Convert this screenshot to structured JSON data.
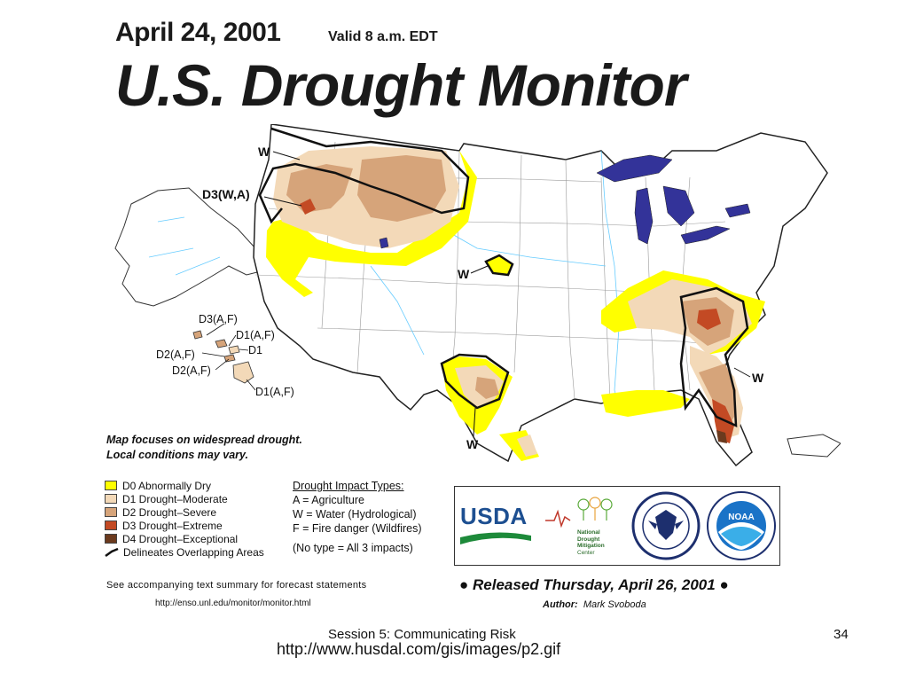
{
  "header": {
    "date": "April 24, 2001",
    "valid": "Valid 8 a.m. EDT",
    "title": "U.S. Drought Monitor"
  },
  "map": {
    "labels": {
      "w_northwest": "W",
      "d3_wa": "D3(W,A)",
      "w_colorado": "W",
      "w_texas": "W",
      "w_southeast": "W"
    },
    "hawaii_labels": [
      "D3(A,F)",
      "D1(A,F)",
      "D1",
      "D2(A,F)",
      "D2(A,F)",
      "D1(A,F)"
    ],
    "colors": {
      "d0": "#ffff00",
      "d1": "#fcd37f",
      "d2": "#d2a679",
      "d3": "#c0502d",
      "d4": "#6b3a1e",
      "lakes": "#333399",
      "rivers": "#66ccff"
    }
  },
  "focus_note": {
    "line1": "Map focuses on widespread drought.",
    "line2": "Local conditions may vary."
  },
  "legend": {
    "items": [
      {
        "label": "D0 Abnormally Dry",
        "color": "#ffff00"
      },
      {
        "label": "D1 Drought–Moderate",
        "color": "#f3d9b8"
      },
      {
        "label": "D2 Drought–Severe",
        "color": "#d6a47a"
      },
      {
        "label": "D3 Drought–Extreme",
        "color": "#c34a24"
      },
      {
        "label": "D4 Drought–Exceptional",
        "color": "#6b3a1e"
      }
    ],
    "line_label": "Delineates Overlapping Areas"
  },
  "impacts": {
    "heading": "Drought Impact Types:",
    "a": "A = Agriculture",
    "w": "W = Water (Hydrological)",
    "f": "F = Fire danger (Wildfires)",
    "none": "(No type = All 3 impacts)"
  },
  "logos": {
    "usda": "USDA",
    "ndmc_line1": "National",
    "ndmc_line2": "Drought",
    "ndmc_line3": "Mitigation",
    "ndmc_line4": "Center",
    "noaa": "NOAA"
  },
  "footer": {
    "accompanying": "See accompanying text summary for forecast statements",
    "url": "http://enso.unl.edu/monitor/monitor.html",
    "released": "Released Thursday, April 26, 2001",
    "author_label": "Author:",
    "author_name": "Mark Svoboda"
  },
  "slide": {
    "session": "Session 5: Communicating Risk",
    "page": "34",
    "source_url": "http://www.husdal.com/gis/images/p2.gif"
  }
}
